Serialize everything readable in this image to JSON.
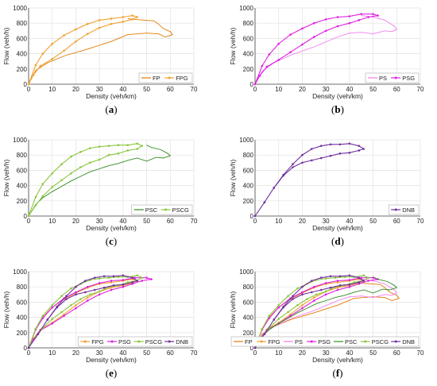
{
  "colors": {
    "FP": "#e07b00",
    "FPG": "#f0a030",
    "PS": "#f07af0",
    "PSG": "#e020e0",
    "PSC": "#2e8b1e",
    "PSCG": "#8cc63f",
    "DNB": "#7030a0",
    "grid": "#e0e0e0",
    "axis": "#444444"
  },
  "chart_data": [
    {
      "type": "line",
      "caption": "a",
      "xlabel": "Density (veh/km)",
      "ylabel": "Flow (veh/h)",
      "xlim": [
        0,
        70
      ],
      "ylim": [
        0,
        1000
      ],
      "xticks": [
        "0",
        "10",
        "20",
        "30",
        "40",
        "50",
        "60",
        "70"
      ],
      "yticks": [
        "0",
        "200",
        "400",
        "600",
        "800",
        "1000"
      ],
      "grid": true,
      "legend_position": "bottom-right",
      "series": [
        {
          "name": "FP",
          "color_key": "FP",
          "marker": false,
          "x": [
            0,
            3,
            8,
            15,
            25,
            35,
            42,
            50,
            55,
            58,
            61,
            60,
            57,
            55,
            53,
            45,
            42
          ],
          "y": [
            0,
            180,
            280,
            370,
            460,
            560,
            650,
            670,
            660,
            620,
            650,
            690,
            730,
            790,
            830,
            850,
            860
          ]
        },
        {
          "name": "FPG",
          "color_key": "FPG",
          "marker": true,
          "x": [
            0,
            3,
            6,
            10,
            15,
            20,
            25,
            30,
            35,
            40,
            44,
            46,
            44,
            40,
            35,
            30,
            25,
            20,
            15,
            10,
            5,
            2,
            0
          ],
          "y": [
            0,
            250,
            400,
            530,
            640,
            720,
            790,
            840,
            860,
            880,
            900,
            880,
            850,
            820,
            790,
            740,
            660,
            560,
            440,
            330,
            240,
            120,
            0
          ]
        }
      ]
    },
    {
      "type": "line",
      "caption": "b",
      "xlabel": "Density (veh/km)",
      "ylabel": "Flow (veh/h)",
      "xlim": [
        0,
        70
      ],
      "ylim": [
        0,
        1000
      ],
      "xticks": [
        "0",
        "10",
        "20",
        "30",
        "40",
        "50",
        "60",
        "70"
      ],
      "yticks": [
        "0",
        "200",
        "400",
        "600",
        "800",
        "1000"
      ],
      "grid": true,
      "legend_position": "bottom-right",
      "series": [
        {
          "name": "PS",
          "color_key": "PS",
          "marker": false,
          "x": [
            0,
            3,
            8,
            15,
            25,
            35,
            40,
            45,
            50,
            55,
            58,
            60,
            59,
            57,
            55,
            50,
            45
          ],
          "y": [
            0,
            170,
            280,
            380,
            490,
            620,
            670,
            680,
            660,
            700,
            690,
            720,
            760,
            800,
            840,
            880,
            900
          ]
        },
        {
          "name": "PSG",
          "color_key": "PSG",
          "marker": true,
          "x": [
            0,
            3,
            6,
            10,
            15,
            20,
            25,
            30,
            35,
            40,
            45,
            50,
            52,
            48,
            44,
            40,
            35,
            30,
            25,
            20,
            15,
            10,
            5,
            2,
            0
          ],
          "y": [
            0,
            240,
            390,
            530,
            650,
            730,
            800,
            850,
            880,
            890,
            920,
            920,
            900,
            880,
            840,
            800,
            760,
            700,
            620,
            520,
            420,
            320,
            230,
            110,
            0
          ]
        }
      ]
    },
    {
      "type": "line",
      "caption": "c",
      "xlabel": "Density (veh/km)",
      "ylabel": "Flow (veh/h)",
      "xlim": [
        0,
        70
      ],
      "ylim": [
        0,
        1000
      ],
      "xticks": [
        "0",
        "10",
        "20",
        "30",
        "40",
        "50",
        "60",
        "70"
      ],
      "yticks": [
        "0",
        "200",
        "400",
        "600",
        "800",
        "1000"
      ],
      "grid": true,
      "legend_position": "bottom-right",
      "series": [
        {
          "name": "PSC",
          "color_key": "PSC",
          "marker": false,
          "x": [
            0,
            3,
            6,
            10,
            14,
            18,
            22,
            26,
            30,
            34,
            38,
            42,
            46,
            50,
            54,
            57,
            60,
            59,
            56,
            52,
            50
          ],
          "y": [
            0,
            150,
            240,
            320,
            390,
            460,
            520,
            580,
            620,
            660,
            690,
            730,
            760,
            720,
            770,
            760,
            790,
            820,
            870,
            900,
            930
          ]
        },
        {
          "name": "PSCG",
          "color_key": "PSCG",
          "marker": true,
          "x": [
            0,
            3,
            6,
            10,
            14,
            18,
            22,
            26,
            30,
            34,
            38,
            42,
            46,
            48,
            46,
            42,
            38,
            34,
            30,
            26,
            22,
            18,
            14,
            10,
            6,
            3,
            0
          ],
          "y": [
            0,
            250,
            420,
            560,
            680,
            780,
            840,
            890,
            910,
            920,
            930,
            930,
            950,
            920,
            880,
            860,
            820,
            800,
            740,
            700,
            640,
            560,
            470,
            380,
            260,
            140,
            0
          ]
        }
      ]
    },
    {
      "type": "line",
      "caption": "d",
      "xlabel": "Density (veh/km)",
      "ylabel": "Flow (veh/h)",
      "xlim": [
        0,
        70
      ],
      "ylim": [
        0,
        1000
      ],
      "xticks": [
        "0",
        "10",
        "20",
        "30",
        "40",
        "50",
        "60",
        "70"
      ],
      "yticks": [
        "0",
        "200",
        "400",
        "600",
        "800",
        "1000"
      ],
      "grid": true,
      "legend_position": "bottom-right",
      "series": [
        {
          "name": "DNB",
          "color_key": "DNB",
          "marker": true,
          "x": [
            0,
            4,
            8,
            12,
            16,
            20,
            24,
            28,
            32,
            36,
            40,
            44,
            46,
            44,
            40,
            36,
            32,
            28,
            24,
            20,
            16,
            12,
            8,
            4,
            0
          ],
          "y": [
            0,
            180,
            370,
            540,
            680,
            800,
            880,
            920,
            940,
            940,
            950,
            920,
            880,
            860,
            830,
            820,
            790,
            760,
            730,
            700,
            640,
            530,
            370,
            180,
            0
          ]
        }
      ]
    },
    {
      "type": "line",
      "caption": "e",
      "xlabel": "Density (veh/km)",
      "ylabel": "Flow (veh/h)",
      "xlim": [
        0,
        70
      ],
      "ylim": [
        0,
        1000
      ],
      "xticks": [
        "0",
        "10",
        "20",
        "30",
        "40",
        "50",
        "60",
        "70"
      ],
      "yticks": [
        "0",
        "200",
        "400",
        "600",
        "800",
        "1000"
      ],
      "grid": true,
      "legend_position": "bottom-right",
      "series": [
        {
          "name": "FPG",
          "color_key": "FPG",
          "marker": true,
          "x": [
            0,
            3,
            6,
            10,
            15,
            20,
            25,
            30,
            35,
            40,
            44,
            46,
            44,
            40,
            35,
            30,
            25,
            20,
            15,
            10,
            5,
            2,
            0
          ],
          "y": [
            0,
            250,
            400,
            530,
            640,
            720,
            790,
            840,
            860,
            880,
            900,
            880,
            850,
            820,
            790,
            740,
            660,
            560,
            440,
            330,
            240,
            120,
            0
          ]
        },
        {
          "name": "PSG",
          "color_key": "PSG",
          "marker": true,
          "x": [
            0,
            3,
            6,
            10,
            15,
            20,
            25,
            30,
            35,
            40,
            45,
            50,
            52,
            48,
            44,
            40,
            35,
            30,
            25,
            20,
            15,
            10,
            5,
            2,
            0
          ],
          "y": [
            0,
            240,
            390,
            530,
            650,
            730,
            800,
            850,
            880,
            890,
            920,
            920,
            900,
            880,
            840,
            800,
            760,
            700,
            620,
            520,
            420,
            320,
            230,
            110,
            0
          ]
        },
        {
          "name": "PSCG",
          "color_key": "PSCG",
          "marker": true,
          "x": [
            0,
            3,
            6,
            10,
            14,
            18,
            22,
            26,
            30,
            34,
            38,
            42,
            46,
            48,
            46,
            42,
            38,
            34,
            30,
            26,
            22,
            18,
            14,
            10,
            6,
            3,
            0
          ],
          "y": [
            0,
            250,
            420,
            560,
            680,
            780,
            840,
            890,
            910,
            920,
            930,
            930,
            950,
            920,
            880,
            860,
            820,
            800,
            740,
            700,
            640,
            560,
            470,
            380,
            260,
            140,
            0
          ]
        },
        {
          "name": "DNB",
          "color_key": "DNB",
          "marker": true,
          "x": [
            0,
            4,
            8,
            12,
            16,
            20,
            24,
            28,
            32,
            36,
            40,
            44,
            46,
            44,
            40,
            36,
            32,
            28,
            24,
            20,
            16,
            12,
            8,
            4,
            0
          ],
          "y": [
            0,
            180,
            370,
            540,
            680,
            800,
            880,
            920,
            940,
            940,
            950,
            920,
            880,
            860,
            830,
            820,
            790,
            760,
            730,
            700,
            640,
            530,
            370,
            180,
            0
          ]
        }
      ]
    },
    {
      "type": "line",
      "caption": "f",
      "xlabel": "Density (veh/km)",
      "ylabel": "Flow (veh/h)",
      "xlim": [
        0,
        70
      ],
      "ylim": [
        0,
        1000
      ],
      "xticks": [
        "0",
        "10",
        "20",
        "30",
        "40",
        "50",
        "60",
        "70"
      ],
      "yticks": [
        "0",
        "200",
        "400",
        "600",
        "800",
        "1000"
      ],
      "grid": true,
      "legend_position": "bottom-right",
      "series": [
        {
          "name": "FP",
          "color_key": "FP",
          "marker": false,
          "x": [
            0,
            3,
            8,
            15,
            25,
            35,
            42,
            50,
            55,
            58,
            61,
            60,
            57,
            55,
            53,
            45,
            42
          ],
          "y": [
            0,
            180,
            280,
            370,
            460,
            560,
            650,
            670,
            660,
            620,
            650,
            690,
            730,
            790,
            830,
            850,
            860
          ]
        },
        {
          "name": "FPG",
          "color_key": "FPG",
          "marker": true,
          "x": [
            0,
            3,
            6,
            10,
            15,
            20,
            25,
            30,
            35,
            40,
            44,
            46,
            44,
            40,
            35,
            30,
            25,
            20,
            15,
            10,
            5,
            2,
            0
          ],
          "y": [
            0,
            250,
            400,
            530,
            640,
            720,
            790,
            840,
            860,
            880,
            900,
            880,
            850,
            820,
            790,
            740,
            660,
            560,
            440,
            330,
            240,
            120,
            0
          ]
        },
        {
          "name": "PS",
          "color_key": "PS",
          "marker": false,
          "x": [
            0,
            3,
            8,
            15,
            25,
            35,
            40,
            45,
            50,
            55,
            58,
            60,
            59,
            57,
            55,
            50,
            45
          ],
          "y": [
            0,
            170,
            280,
            380,
            490,
            620,
            670,
            680,
            660,
            700,
            690,
            720,
            760,
            800,
            840,
            880,
            900
          ]
        },
        {
          "name": "PSG",
          "color_key": "PSG",
          "marker": true,
          "x": [
            0,
            3,
            6,
            10,
            15,
            20,
            25,
            30,
            35,
            40,
            45,
            50,
            52,
            48,
            44,
            40,
            35,
            30,
            25,
            20,
            15,
            10,
            5,
            2,
            0
          ],
          "y": [
            0,
            240,
            390,
            530,
            650,
            730,
            800,
            850,
            880,
            890,
            920,
            920,
            900,
            880,
            840,
            800,
            760,
            700,
            620,
            520,
            420,
            320,
            230,
            110,
            0
          ]
        },
        {
          "name": "PSC",
          "color_key": "PSC",
          "marker": false,
          "x": [
            0,
            3,
            6,
            10,
            14,
            18,
            22,
            26,
            30,
            34,
            38,
            42,
            46,
            50,
            54,
            57,
            60,
            59,
            56,
            52,
            50
          ],
          "y": [
            0,
            150,
            240,
            320,
            390,
            460,
            520,
            580,
            620,
            660,
            690,
            730,
            760,
            720,
            770,
            760,
            790,
            820,
            870,
            900,
            930
          ]
        },
        {
          "name": "PSCG",
          "color_key": "PSCG",
          "marker": true,
          "x": [
            0,
            3,
            6,
            10,
            14,
            18,
            22,
            26,
            30,
            34,
            38,
            42,
            46,
            48,
            46,
            42,
            38,
            34,
            30,
            26,
            22,
            18,
            14,
            10,
            6,
            3,
            0
          ],
          "y": [
            0,
            250,
            420,
            560,
            680,
            780,
            840,
            890,
            910,
            920,
            930,
            930,
            950,
            920,
            880,
            860,
            820,
            800,
            740,
            700,
            640,
            560,
            470,
            380,
            260,
            140,
            0
          ]
        },
        {
          "name": "DNB",
          "color_key": "DNB",
          "marker": true,
          "x": [
            0,
            4,
            8,
            12,
            16,
            20,
            24,
            28,
            32,
            36,
            40,
            44,
            46,
            44,
            40,
            36,
            32,
            28,
            24,
            20,
            16,
            12,
            8,
            4,
            0
          ],
          "y": [
            0,
            180,
            370,
            540,
            680,
            800,
            880,
            920,
            940,
            940,
            950,
            920,
            880,
            860,
            830,
            820,
            790,
            760,
            730,
            700,
            640,
            530,
            370,
            180,
            0
          ]
        }
      ]
    }
  ]
}
